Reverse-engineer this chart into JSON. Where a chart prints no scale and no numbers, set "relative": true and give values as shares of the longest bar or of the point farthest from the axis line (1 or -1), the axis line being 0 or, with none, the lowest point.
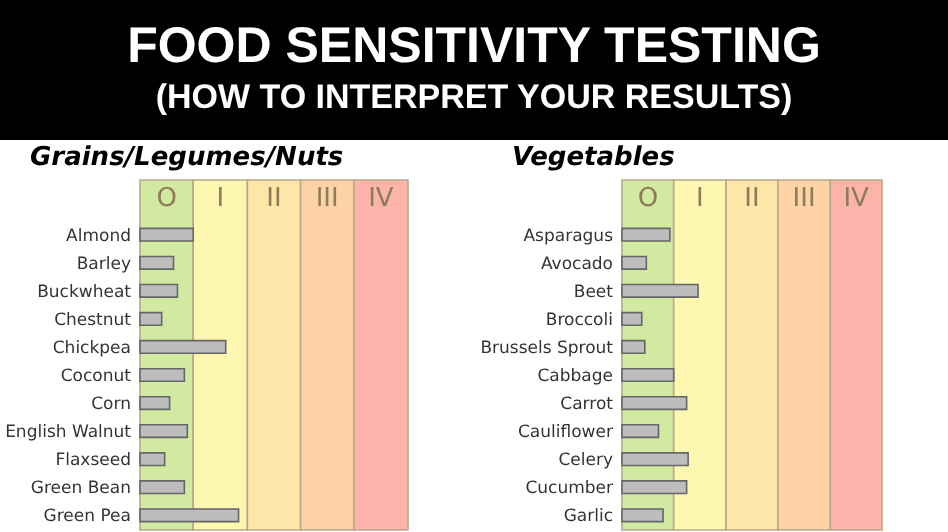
{
  "chart_data": [
    {
      "type": "other",
      "title": "FOOD SENSITIVITY TESTING",
      "subtitle": "(HOW TO INTERPRET YOUR RESULTS)"
    },
    {
      "type": "bar",
      "orientation": "horizontal",
      "relative": true,
      "title": "Grains/Legumes/Nuts",
      "categories": [
        "Almond",
        "Barley",
        "Buckwheat",
        "Chestnut",
        "Chickpea",
        "Coconut",
        "Corn",
        "English Walnut",
        "Flaxseed",
        "Green Bean",
        "Green Pea"
      ],
      "series": [
        {
          "color": "#bdbdbd",
          "values": [
            0.54,
            0.34,
            0.38,
            0.22,
            0.87,
            0.45,
            0.3,
            0.48,
            0.25,
            0.45,
            1
          ]
        }
      ],
      "bands": [
        {
          "axis": "x",
          "from": 0,
          "to": 0.54,
          "label": "O",
          "color": "#d2e9a2"
        },
        {
          "axis": "x",
          "from": 0.54,
          "to": 1.09,
          "label": "I",
          "color": "#fdf7b0"
        },
        {
          "axis": "x",
          "from": 1.09,
          "to": 1.63,
          "label": "II",
          "color": "#fde6a8"
        },
        {
          "axis": "x",
          "from": 1.63,
          "to": 2.17,
          "label": "III",
          "color": "#fdd2a4"
        },
        {
          "axis": "x",
          "from": 2.17,
          "to": 2.72,
          "label": "IV",
          "color": "#fbb3aa"
        }
      ]
    },
    {
      "type": "bar",
      "orientation": "horizontal",
      "relative": true,
      "title": "Vegetables",
      "categories": [
        "Asparagus",
        "Avocado",
        "Beet",
        "Broccoli",
        "Brussels Sprout",
        "Cabbage",
        "Carrot",
        "Cauliflower",
        "Celery",
        "Cucumber",
        "Garlic"
      ],
      "series": [
        {
          "color": "#bdbdbd",
          "values": [
            0.63,
            0.32,
            1,
            0.26,
            0.3,
            0.68,
            0.85,
            0.48,
            0.87,
            0.85,
            0.54
          ]
        }
      ],
      "bands": [
        {
          "axis": "x",
          "from": 0,
          "to": 0.68,
          "label": "O",
          "color": "#d2e9a2"
        },
        {
          "axis": "x",
          "from": 0.68,
          "to": 1.37,
          "label": "I",
          "color": "#fdf7b0"
        },
        {
          "axis": "x",
          "from": 1.37,
          "to": 2.05,
          "label": "II",
          "color": "#fde6a8"
        },
        {
          "axis": "x",
          "from": 2.05,
          "to": 2.74,
          "label": "III",
          "color": "#fdd2a4"
        },
        {
          "axis": "x",
          "from": 2.74,
          "to": 3.42,
          "label": "IV",
          "color": "#fbb3aa"
        }
      ]
    }
  ]
}
